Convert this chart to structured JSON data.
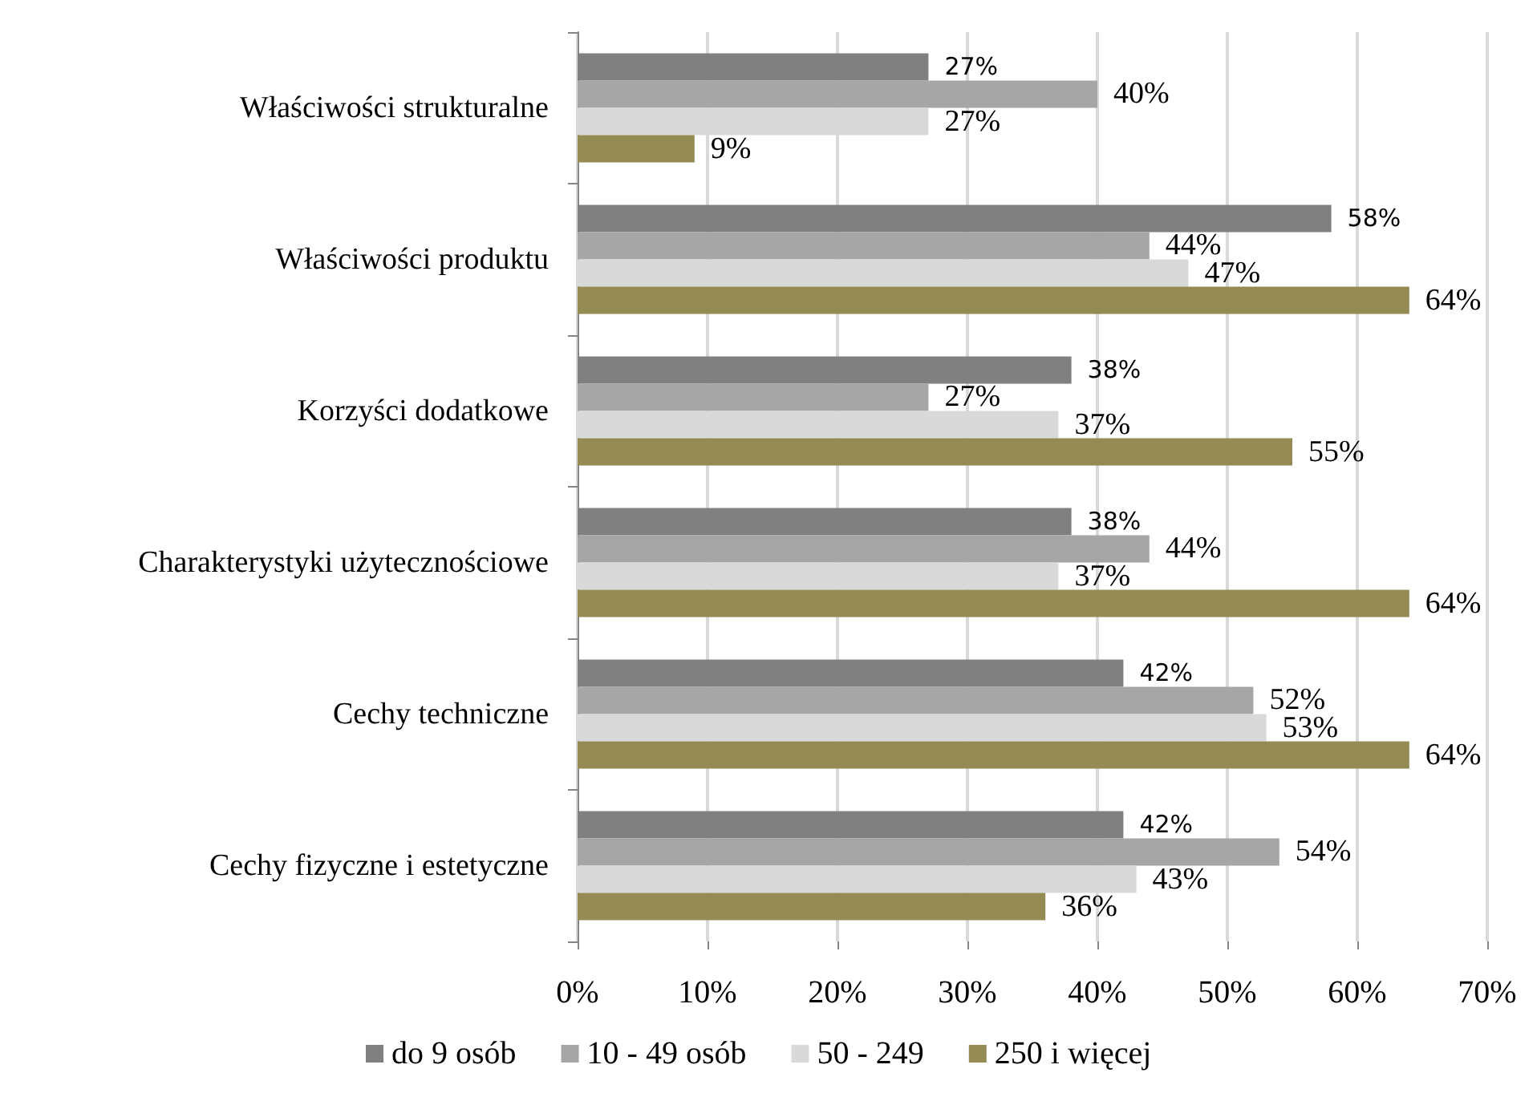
{
  "chart_data": {
    "type": "bar",
    "orientation": "horizontal",
    "categories": [
      "Właściwości strukturalne",
      "Właściwości produktu",
      "Korzyści dodatkowe",
      "Charakterystyki użytecznościowe",
      "Cechy techniczne",
      "Cechy fizyczne i estetyczne"
    ],
    "series": [
      {
        "name": "do 9 osób",
        "color": "#808080",
        "values": [
          27,
          58,
          38,
          38,
          42,
          42
        ],
        "value_labels": [
          "27%",
          "58%",
          "38%",
          "38%",
          "42%",
          "42%"
        ]
      },
      {
        "name": "10 - 49 osób",
        "color": "#a6a6a6",
        "values": [
          40,
          44,
          27,
          44,
          52,
          54
        ],
        "value_labels": [
          "40%",
          "44%",
          "27%",
          "44%",
          "52%",
          "54%"
        ]
      },
      {
        "name": "50 - 249",
        "color": "#d9d9d9",
        "values": [
          27,
          47,
          37,
          37,
          53,
          43
        ],
        "value_labels": [
          "27%",
          "47%",
          "37%",
          "37%",
          "53%",
          "43%"
        ]
      },
      {
        "name": "250 i więcej",
        "color": "#948a54",
        "values": [
          9,
          64,
          55,
          64,
          64,
          36
        ],
        "value_labels": [
          "9%",
          "64%",
          "55%",
          "64%",
          "64%",
          "36%"
        ]
      }
    ],
    "xlim": [
      0,
      70
    ],
    "xticks": [
      {
        "value": 0,
        "label": "0%"
      },
      {
        "value": 10,
        "label": "10%"
      },
      {
        "value": 20,
        "label": "20%"
      },
      {
        "value": 30,
        "label": "30%"
      },
      {
        "value": 40,
        "label": "40%"
      },
      {
        "value": 50,
        "label": "50%"
      },
      {
        "value": 60,
        "label": "60%"
      },
      {
        "value": 70,
        "label": "70%"
      }
    ],
    "grid": "x",
    "legend": "bottom"
  }
}
